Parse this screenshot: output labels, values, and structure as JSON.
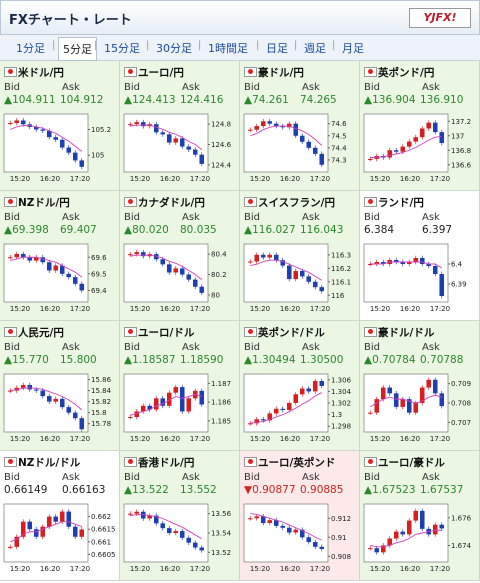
{
  "header": {
    "title": "FXチャート・レート",
    "logo": "YJFX!"
  },
  "tabs": [
    "1分足",
    "5分足",
    "15分足",
    "30分足",
    "1時間足",
    "日足",
    "週足",
    "月足"
  ],
  "selected_tab": 1,
  "labels": {
    "bid": "Bid",
    "ask": "Ask"
  },
  "time_labels": [
    "15:20",
    "16:20",
    "17:20"
  ],
  "pairs": [
    {
      "name": "米ドル/円",
      "arrow": "▲",
      "color": "#2a8a2a",
      "bg": "#ebf7e3",
      "bid": "104.911",
      "ask": "104.912",
      "chart": {
        "ylim": [
          104.87,
          105.32
        ],
        "yticks": [
          105.2,
          105
        ],
        "values": [
          105.25,
          105.27,
          105.24,
          105.22,
          105.2,
          105.19,
          105.14,
          105.12,
          105.06,
          105.02,
          104.96,
          104.91
        ],
        "ma": [
          105.2,
          105.22,
          105.23,
          105.23,
          105.22,
          105.21,
          105.19,
          105.17,
          105.14,
          105.11,
          105.07,
          105.03
        ]
      }
    },
    {
      "name": "ユーロ/円",
      "arrow": "▲",
      "color": "#2a8a2a",
      "bg": "#ebf7e3",
      "bid": "124.413",
      "ask": "124.416",
      "chart": {
        "ylim": [
          124.33,
          124.9
        ],
        "yticks": [
          124.8,
          124.6,
          124.4
        ],
        "values": [
          124.8,
          124.82,
          124.78,
          124.8,
          124.72,
          124.7,
          124.62,
          124.66,
          124.58,
          124.55,
          124.5,
          124.41
        ],
        "ma": [
          124.78,
          124.79,
          124.79,
          124.79,
          124.77,
          124.75,
          124.72,
          124.7,
          124.67,
          124.63,
          124.6,
          124.55
        ]
      }
    },
    {
      "name": "豪ドル/円",
      "arrow": "▲",
      "color": "#2a8a2a",
      "bg": "#ebf7e3",
      "bid": "74.261",
      "ask": "74.265",
      "chart": {
        "ylim": [
          74.2,
          74.68
        ],
        "yticks": [
          74.6,
          74.5,
          74.4,
          74.3
        ],
        "values": [
          74.55,
          74.58,
          74.62,
          74.6,
          74.58,
          74.57,
          74.6,
          74.5,
          74.45,
          74.4,
          74.35,
          74.26
        ],
        "ma": [
          74.5,
          74.52,
          74.55,
          74.57,
          74.58,
          74.58,
          74.58,
          74.56,
          74.54,
          74.51,
          74.47,
          74.42
        ]
      }
    },
    {
      "name": "英ポンド/円",
      "arrow": "▲",
      "color": "#2a8a2a",
      "bg": "#ebf7e3",
      "bid": "136.904",
      "ask": "136.910",
      "chart": {
        "ylim": [
          136.5,
          137.3
        ],
        "yticks": [
          137.2,
          137,
          136.8,
          136.6
        ],
        "values": [
          136.68,
          136.72,
          136.7,
          136.8,
          136.78,
          136.85,
          136.92,
          136.98,
          137.1,
          137.18,
          137.05,
          136.9
        ],
        "ma": [
          136.7,
          136.7,
          136.71,
          136.73,
          136.75,
          136.77,
          136.8,
          136.84,
          136.89,
          136.94,
          136.98,
          136.99
        ]
      }
    },
    {
      "name": "NZドル/円",
      "arrow": "▲",
      "color": "#2a8a2a",
      "bg": "#ebf7e3",
      "bid": "69.398",
      "ask": "69.407",
      "chart": {
        "ylim": [
          69.33,
          69.68
        ],
        "yticks": [
          69.6,
          69.5,
          69.4
        ],
        "values": [
          69.6,
          69.62,
          69.6,
          69.58,
          69.6,
          69.57,
          69.52,
          69.55,
          69.5,
          69.48,
          69.44,
          69.4
        ],
        "ma": [
          69.58,
          69.59,
          69.6,
          69.6,
          69.6,
          69.59,
          69.58,
          69.57,
          69.55,
          69.53,
          69.51,
          69.48
        ]
      }
    },
    {
      "name": "カナダドル/円",
      "arrow": "▲",
      "color": "#2a8a2a",
      "bg": "#ebf7e3",
      "bid": "80.020",
      "ask": "80.035",
      "chart": {
        "ylim": [
          79.93,
          80.5
        ],
        "yticks": [
          80.4,
          80.2,
          80
        ],
        "values": [
          80.4,
          80.42,
          80.38,
          80.4,
          80.35,
          80.3,
          80.22,
          80.26,
          80.2,
          80.15,
          80.08,
          80.02
        ],
        "ma": [
          80.38,
          80.39,
          80.39,
          80.39,
          80.38,
          80.36,
          80.33,
          80.31,
          80.28,
          80.24,
          80.2,
          80.15
        ]
      }
    },
    {
      "name": "スイスフラン/円",
      "arrow": "▲",
      "color": "#2a8a2a",
      "bg": "#ebf7e3",
      "bid": "116.027",
      "ask": "116.043",
      "chart": {
        "ylim": [
          115.95,
          116.38
        ],
        "yticks": [
          116.3,
          116.2,
          116.1,
          116
        ],
        "values": [
          116.25,
          116.3,
          116.28,
          116.3,
          116.26,
          116.22,
          116.12,
          116.18,
          116.14,
          116.1,
          116.06,
          116.03
        ],
        "ma": [
          116.22,
          116.23,
          116.25,
          116.26,
          116.26,
          116.25,
          116.23,
          116.21,
          116.19,
          116.17,
          116.14,
          116.11
        ]
      }
    },
    {
      "name": "ランド/円",
      "color": "#222222",
      "bg": "#ffffff",
      "bid": "6.384",
      "ask": "6.397",
      "chart": {
        "ylim": [
          6.381,
          6.41
        ],
        "yticks": [
          6.4,
          6.39
        ],
        "values": [
          6.4,
          6.401,
          6.4,
          6.402,
          6.401,
          6.4,
          6.401,
          6.403,
          6.4,
          6.399,
          6.395,
          6.384
        ],
        "ma": [
          6.4,
          6.4,
          6.4,
          6.401,
          6.401,
          6.401,
          6.401,
          6.401,
          6.401,
          6.4,
          6.4,
          6.398
        ]
      }
    },
    {
      "name": "人民元/円",
      "arrow": "▲",
      "color": "#2a8a2a",
      "bg": "#ebf7e3",
      "bid": "15.770",
      "ask": "15.800",
      "chart": {
        "ylim": [
          15.765,
          15.87
        ],
        "yticks": [
          15.86,
          15.84,
          15.82,
          15.8,
          15.78
        ],
        "values": [
          15.84,
          15.845,
          15.85,
          15.842,
          15.84,
          15.83,
          15.82,
          15.825,
          15.81,
          15.8,
          15.79,
          15.77
        ],
        "ma": [
          15.84,
          15.842,
          15.844,
          15.845,
          15.844,
          15.842,
          15.838,
          15.834,
          15.829,
          15.823,
          15.815,
          15.805
        ]
      }
    },
    {
      "name": "ユーロ/ドル",
      "arrow": "▲",
      "color": "#2a8a2a",
      "bg": "#ebf7e3",
      "bid": "1.18587",
      "ask": "1.18590",
      "chart": {
        "ylim": [
          1.1844,
          1.1875
        ],
        "yticks": [
          1.187,
          1.186,
          1.185
        ],
        "values": [
          1.1852,
          1.1855,
          1.1858,
          1.1856,
          1.1862,
          1.1858,
          1.1865,
          1.1868,
          1.1855,
          1.1862,
          1.1866,
          1.18587
        ],
        "ma": [
          1.1853,
          1.1854,
          1.1855,
          1.1856,
          1.1858,
          1.1859,
          1.1861,
          1.1863,
          1.1862,
          1.1863,
          1.1864,
          1.1863
        ]
      }
    },
    {
      "name": "英ポンド/ドル",
      "arrow": "▲",
      "color": "#2a8a2a",
      "bg": "#ebf7e3",
      "bid": "1.30494",
      "ask": "1.30500",
      "chart": {
        "ylim": [
          1.297,
          1.307
        ],
        "yticks": [
          1.306,
          1.304,
          1.302,
          1.3,
          1.298
        ],
        "values": [
          1.2985,
          1.2992,
          1.299,
          1.3002,
          1.301,
          1.3008,
          1.302,
          1.3035,
          1.3045,
          1.304,
          1.3058,
          1.30494
        ],
        "ma": [
          1.2985,
          1.2987,
          1.2988,
          1.2992,
          1.2996,
          1.3,
          1.3005,
          1.3011,
          1.3018,
          1.3024,
          1.3032,
          1.3038
        ]
      }
    },
    {
      "name": "豪ドル/ドル",
      "arrow": "▲",
      "color": "#2a8a2a",
      "bg": "#ebf7e3",
      "bid": "0.70784",
      "ask": "0.70788",
      "chart": {
        "ylim": [
          0.7065,
          0.7095
        ],
        "yticks": [
          0.709,
          0.708,
          0.707
        ],
        "values": [
          0.7075,
          0.7082,
          0.7088,
          0.7085,
          0.7078,
          0.7082,
          0.7075,
          0.708,
          0.7088,
          0.7092,
          0.7085,
          0.70784
        ],
        "ma": [
          0.7078,
          0.708,
          0.7082,
          0.7083,
          0.7082,
          0.7082,
          0.7081,
          0.708,
          0.7081,
          0.7083,
          0.7084,
          0.7083
        ]
      }
    },
    {
      "name": "NZドル/ドル",
      "color": "#222222",
      "bg": "#ffffff",
      "bid": "0.66149",
      "ask": "0.66163",
      "chart": {
        "ylim": [
          0.6602,
          0.6625
        ],
        "yticks": [
          0.662,
          0.6615,
          0.661,
          0.6605
        ],
        "values": [
          0.6608,
          0.6612,
          0.6618,
          0.6615,
          0.6612,
          0.6616,
          0.662,
          0.6618,
          0.6622,
          0.6616,
          0.6612,
          0.66149
        ],
        "ma": [
          0.661,
          0.6611,
          0.6613,
          0.6614,
          0.6614,
          0.6615,
          0.6616,
          0.6617,
          0.6618,
          0.6618,
          0.6617,
          0.6616
        ]
      }
    },
    {
      "name": "香港ドル/円",
      "arrow": "▲",
      "color": "#2a8a2a",
      "bg": "#ebf7e3",
      "bid": "13.522",
      "ask": "13.552",
      "chart": {
        "ylim": [
          13.51,
          13.57
        ],
        "yticks": [
          13.56,
          13.54,
          13.52
        ],
        "values": [
          13.56,
          13.562,
          13.555,
          13.558,
          13.55,
          13.545,
          13.54,
          13.542,
          13.535,
          13.53,
          13.525,
          13.522
        ],
        "ma": [
          13.558,
          13.559,
          13.559,
          13.558,
          13.557,
          13.555,
          13.552,
          13.549,
          13.546,
          13.542,
          13.538,
          13.534
        ]
      }
    },
    {
      "name": "ユーロ/英ポンド",
      "arrow": "▼",
      "color": "#d0231c",
      "bg": "#fde8ea",
      "bid": "0.90877",
      "ask": "0.90885",
      "chart": {
        "ylim": [
          0.9074,
          0.9135
        ],
        "yticks": [
          0.912,
          0.91,
          0.908
        ],
        "values": [
          0.912,
          0.9122,
          0.9115,
          0.9118,
          0.9112,
          0.911,
          0.9105,
          0.9108,
          0.91,
          0.9095,
          0.909,
          0.90877
        ],
        "ma": [
          0.9125,
          0.9124,
          0.9122,
          0.912,
          0.9118,
          0.9116,
          0.9113,
          0.911,
          0.9107,
          0.9104,
          0.91,
          0.9097
        ]
      }
    },
    {
      "name": "ユーロ/豪ドル",
      "arrow": "▲",
      "color": "#2a8a2a",
      "bg": "#ebf7e3",
      "bid": "1.67523",
      "ask": "1.67537",
      "chart": {
        "ylim": [
          1.6728,
          1.677
        ],
        "yticks": [
          1.676,
          1.674
        ],
        "values": [
          1.6738,
          1.6735,
          1.674,
          1.6745,
          1.675,
          1.6748,
          1.6758,
          1.6765,
          1.6752,
          1.6748,
          1.6755,
          1.67523
        ],
        "ma": [
          1.674,
          1.6739,
          1.6739,
          1.674,
          1.6742,
          1.6743,
          1.6745,
          1.6748,
          1.6749,
          1.675,
          1.6751,
          1.6751
        ]
      }
    }
  ]
}
